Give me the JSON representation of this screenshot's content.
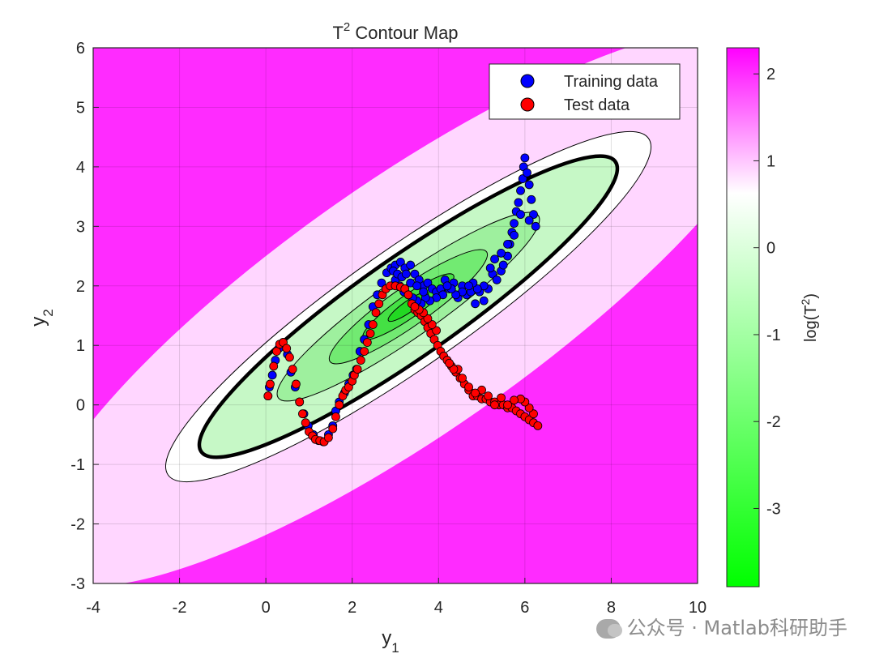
{
  "chart_data": {
    "type": "contour+scatter",
    "title": "T",
    "title_sup": "2",
    "title_rest": " Contour Map",
    "xlabel": "y",
    "xlabel_sub": "1",
    "ylabel": "y",
    "ylabel_sub": "2",
    "xlim": [
      -4,
      10
    ],
    "ylim": [
      -3,
      6
    ],
    "xticks": [
      "-4",
      "-2",
      "0",
      "2",
      "4",
      "6",
      "8",
      "10"
    ],
    "yticks": [
      "-3",
      "-2",
      "-1",
      "0",
      "1",
      "2",
      "3",
      "4",
      "5",
      "6"
    ],
    "grid": true,
    "legend_position": "top-right",
    "contour": {
      "center": [
        3.3,
        1.65
      ],
      "levels_log_t2": [
        -3,
        -2,
        -1,
        0,
        0.7,
        1.2,
        1.6
      ]
    },
    "colorbar": {
      "label": "log(T",
      "label_sup": "2",
      "label_end": ")",
      "range": [
        -3.9,
        2.3
      ],
      "ticks": [
        "2",
        "1",
        "0",
        "-1",
        "-2",
        "-3"
      ],
      "colors": [
        "#00ff00",
        "#ffffff",
        "#ff00ff"
      ]
    },
    "series": [
      {
        "name": "Training data",
        "color": "#0000ff",
        "points": [
          [
            0.05,
            0.15
          ],
          [
            0.08,
            0.3
          ],
          [
            0.15,
            0.5
          ],
          [
            0.22,
            0.75
          ],
          [
            0.3,
            0.95
          ],
          [
            0.4,
            1.05
          ],
          [
            0.5,
            0.85
          ],
          [
            0.58,
            0.55
          ],
          [
            0.68,
            0.3
          ],
          [
            0.78,
            0.05
          ],
          [
            0.88,
            -0.15
          ],
          [
            0.98,
            -0.35
          ],
          [
            1.1,
            -0.5
          ],
          [
            1.22,
            -0.6
          ],
          [
            1.33,
            -0.62
          ],
          [
            1.45,
            -0.5
          ],
          [
            1.55,
            -0.35
          ],
          [
            1.62,
            -0.1
          ],
          [
            1.7,
            0.05
          ],
          [
            1.82,
            0.2
          ],
          [
            1.92,
            0.35
          ],
          [
            2.02,
            0.5
          ],
          [
            2.1,
            0.6
          ],
          [
            2.18,
            0.9
          ],
          [
            2.28,
            1.1
          ],
          [
            2.38,
            1.35
          ],
          [
            2.48,
            1.65
          ],
          [
            2.58,
            1.85
          ],
          [
            2.68,
            2.05
          ],
          [
            2.8,
            2.22
          ],
          [
            2.9,
            2.3
          ],
          [
            3.0,
            2.35
          ],
          [
            3.12,
            2.4
          ],
          [
            3.22,
            2.3
          ],
          [
            3.35,
            2.35
          ],
          [
            3.45,
            2.2
          ],
          [
            3.55,
            2.1
          ],
          [
            3.65,
            2.0
          ],
          [
            3.75,
            2.05
          ],
          [
            3.85,
            1.95
          ],
          [
            3.95,
            1.9
          ],
          [
            4.05,
            1.95
          ],
          [
            4.15,
            2.1
          ],
          [
            4.25,
            1.95
          ],
          [
            4.35,
            2.05
          ],
          [
            4.45,
            1.8
          ],
          [
            4.55,
            2.0
          ],
          [
            4.65,
            1.85
          ],
          [
            4.75,
            1.9
          ],
          [
            4.85,
            1.7
          ],
          [
            4.95,
            1.9
          ],
          [
            5.05,
            1.75
          ],
          [
            5.15,
            1.95
          ],
          [
            5.25,
            2.2
          ],
          [
            5.35,
            2.1
          ],
          [
            5.45,
            2.25
          ],
          [
            5.5,
            2.35
          ],
          [
            5.6,
            2.5
          ],
          [
            5.65,
            2.7
          ],
          [
            5.7,
            2.9
          ],
          [
            5.75,
            3.05
          ],
          [
            5.8,
            3.25
          ],
          [
            5.85,
            3.4
          ],
          [
            5.9,
            3.6
          ],
          [
            5.95,
            3.8
          ],
          [
            5.97,
            4.0
          ],
          [
            6.0,
            4.15
          ],
          [
            6.05,
            3.9
          ],
          [
            6.1,
            3.7
          ],
          [
            6.15,
            3.45
          ],
          [
            6.2,
            3.2
          ],
          [
            6.25,
            3.0
          ],
          [
            6.1,
            3.1
          ],
          [
            5.9,
            3.2
          ],
          [
            5.75,
            2.85
          ],
          [
            5.6,
            2.7
          ],
          [
            5.45,
            2.55
          ],
          [
            5.3,
            2.45
          ],
          [
            5.2,
            2.3
          ],
          [
            5.05,
            2.0
          ],
          [
            4.9,
            1.95
          ],
          [
            4.8,
            2.05
          ],
          [
            4.7,
            2.0
          ],
          [
            4.55,
            1.9
          ],
          [
            4.4,
            1.85
          ],
          [
            4.3,
            1.95
          ],
          [
            4.2,
            2.0
          ],
          [
            4.1,
            1.85
          ],
          [
            3.95,
            1.8
          ],
          [
            3.8,
            1.75
          ],
          [
            3.7,
            1.8
          ],
          [
            3.6,
            1.7
          ],
          [
            3.5,
            1.75
          ],
          [
            3.4,
            1.8
          ],
          [
            3.3,
            1.85
          ],
          [
            3.2,
            1.9
          ],
          [
            3.1,
            2.0
          ],
          [
            3.0,
            2.1
          ],
          [
            2.95,
            2.25
          ],
          [
            3.05,
            2.2
          ],
          [
            3.15,
            2.15
          ],
          [
            3.25,
            2.2
          ],
          [
            3.35,
            2.05
          ],
          [
            3.5,
            2.0
          ],
          [
            3.65,
            1.9
          ]
        ]
      },
      {
        "name": "Test data",
        "color": "#ff0000",
        "points": [
          [
            0.05,
            0.15
          ],
          [
            0.1,
            0.35
          ],
          [
            0.18,
            0.65
          ],
          [
            0.25,
            0.9
          ],
          [
            0.32,
            1.02
          ],
          [
            0.4,
            1.05
          ],
          [
            0.48,
            0.95
          ],
          [
            0.55,
            0.8
          ],
          [
            0.62,
            0.6
          ],
          [
            0.7,
            0.35
          ],
          [
            0.78,
            0.05
          ],
          [
            0.85,
            -0.15
          ],
          [
            0.92,
            -0.3
          ],
          [
            1.0,
            -0.45
          ],
          [
            1.08,
            -0.52
          ],
          [
            1.15,
            -0.58
          ],
          [
            1.25,
            -0.6
          ],
          [
            1.35,
            -0.62
          ],
          [
            1.45,
            -0.55
          ],
          [
            1.55,
            -0.4
          ],
          [
            1.62,
            -0.2
          ],
          [
            1.7,
            0.0
          ],
          [
            1.78,
            0.15
          ],
          [
            1.85,
            0.25
          ],
          [
            1.92,
            0.3
          ],
          [
            2.0,
            0.4
          ],
          [
            2.05,
            0.5
          ],
          [
            2.12,
            0.6
          ],
          [
            2.2,
            0.75
          ],
          [
            2.28,
            0.9
          ],
          [
            2.35,
            1.05
          ],
          [
            2.42,
            1.2
          ],
          [
            2.48,
            1.35
          ],
          [
            2.55,
            1.55
          ],
          [
            2.62,
            1.7
          ],
          [
            2.7,
            1.85
          ],
          [
            2.78,
            1.95
          ],
          [
            2.88,
            2.0
          ],
          [
            3.0,
            2.0
          ],
          [
            3.12,
            1.98
          ],
          [
            3.22,
            1.95
          ],
          [
            3.3,
            1.85
          ],
          [
            3.38,
            1.7
          ],
          [
            3.45,
            1.6
          ],
          [
            3.52,
            1.55
          ],
          [
            3.6,
            1.5
          ],
          [
            3.68,
            1.4
          ],
          [
            3.75,
            1.3
          ],
          [
            3.82,
            1.2
          ],
          [
            3.9,
            1.1
          ],
          [
            3.98,
            1.0
          ],
          [
            4.05,
            0.9
          ],
          [
            4.12,
            0.82
          ],
          [
            4.2,
            0.75
          ],
          [
            4.3,
            0.65
          ],
          [
            4.4,
            0.55
          ],
          [
            4.5,
            0.45
          ],
          [
            4.6,
            0.35
          ],
          [
            4.7,
            0.25
          ],
          [
            4.8,
            0.15
          ],
          [
            4.9,
            0.15
          ],
          [
            5.0,
            0.1
          ],
          [
            5.1,
            0.1
          ],
          [
            5.2,
            0.05
          ],
          [
            5.3,
            0.05
          ],
          [
            5.4,
            0.0
          ],
          [
            5.5,
            0.0
          ],
          [
            5.6,
            -0.05
          ],
          [
            5.7,
            -0.05
          ],
          [
            5.8,
            -0.1
          ],
          [
            5.9,
            -0.15
          ],
          [
            6.0,
            -0.2
          ],
          [
            6.1,
            -0.25
          ],
          [
            6.2,
            -0.3
          ],
          [
            6.3,
            -0.35
          ],
          [
            6.2,
            -0.15
          ],
          [
            6.1,
            -0.05
          ],
          [
            6.0,
            0.05
          ],
          [
            5.9,
            0.1
          ],
          [
            5.75,
            0.08
          ],
          [
            5.6,
            0.0
          ],
          [
            5.45,
            0.12
          ],
          [
            5.3,
            0.0
          ],
          [
            5.15,
            0.15
          ],
          [
            5.0,
            0.25
          ],
          [
            4.85,
            0.2
          ],
          [
            4.7,
            0.3
          ],
          [
            4.55,
            0.45
          ],
          [
            4.45,
            0.6
          ],
          [
            4.35,
            0.6
          ],
          [
            4.25,
            0.7
          ],
          [
            3.95,
            1.25
          ],
          [
            3.85,
            1.35
          ],
          [
            3.75,
            1.45
          ],
          [
            3.65,
            1.55
          ],
          [
            3.55,
            1.6
          ],
          [
            3.45,
            1.65
          ]
        ]
      }
    ]
  },
  "watermark": {
    "text": "公众号 · Matlab科研助手"
  }
}
